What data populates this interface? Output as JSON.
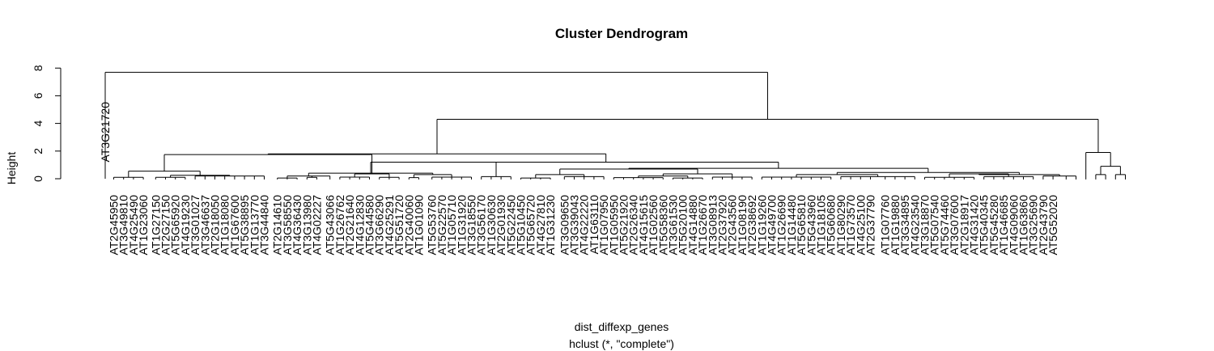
{
  "chart_data": {
    "type": "dendrogram",
    "title": "Cluster Dendrogram",
    "xlabel": "dist_diffexp_genes",
    "subtitle": "hclust (*, \"complete\")",
    "ylabel": "Height",
    "ylim": [
      0,
      8
    ],
    "yticks": [
      0,
      2,
      4,
      6,
      8
    ],
    "root_height": 7.7,
    "outlier_leaf": "AT3G21720",
    "leaf_labels": [
      "AT2G45950",
      "AT3G49810",
      "AT4G25490",
      "AT1G23060",
      "AT1G27150",
      "AT2G27150",
      "AT5G65920",
      "AT4G19230",
      "AT3G01027",
      "AT3G46637",
      "AT2G18050",
      "AT1G18080",
      "AT1G67600",
      "AT5G38895",
      "AT1G13770",
      "AT3G44840",
      "AT2G14610",
      "AT3G58550",
      "AT4G36430",
      "AT3G13980",
      "AT4G02227",
      "AT5G43066",
      "AT1G26762",
      "AT2G21640",
      "AT4G12830",
      "AT5G44580",
      "AT3G66290",
      "AT4G25291",
      "AT5G51720",
      "AT2G40060",
      "AT1G01090",
      "AT5G53760",
      "AT5G22570",
      "AT1G05710",
      "AT1G31920",
      "AT3G18550",
      "AT3G56170",
      "AT1G30630",
      "AT2G01930",
      "AT5G22450",
      "AT5G10450",
      "AT5G65720",
      "AT4G27810",
      "AT1G31230",
      "AT3G09650",
      "AT3G39043",
      "AT4G22220",
      "AT1G63110",
      "AT1G07950",
      "AT1G05950",
      "AT5G21920",
      "AT2G26340",
      "AT4G15615",
      "AT1G02560",
      "AT5G58360",
      "AT3G61530",
      "AT5G20100",
      "AT4G14880",
      "AT1G26670",
      "AT3G08913",
      "AT2G37920",
      "AT2G43560",
      "AT1G08190",
      "AT2G38692",
      "AT1G19260",
      "AT4G49700",
      "AT1G26690",
      "AT1G14480",
      "AT5G65810",
      "AT5G43960",
      "AT1G18105",
      "AT5G60680",
      "AT1G80290",
      "AT1G73570",
      "AT4G25100",
      "AT2G37790",
      "AT1G07760",
      "AT1G19880",
      "AT3G34895",
      "AT4G23540",
      "AT3G18870",
      "AT5G07540",
      "AT5G74460",
      "AT3G07600",
      "AT2G18917",
      "AT4G31420",
      "AT5G40345",
      "AT5G45280",
      "AT1G46685",
      "AT4G09060",
      "AT1G63860",
      "AT3G25690",
      "AT2G43790",
      "AT5G52020"
    ],
    "merge_heights": {
      "cluster_A_groups": [
        0.55,
        0.3,
        0.25,
        0.1
      ],
      "cluster_A": 1.75,
      "cluster_B": 1.2,
      "cluster_C": 1.8,
      "cluster_D": 0.75,
      "big_left": 4.3,
      "right_group": 1.9
    }
  }
}
